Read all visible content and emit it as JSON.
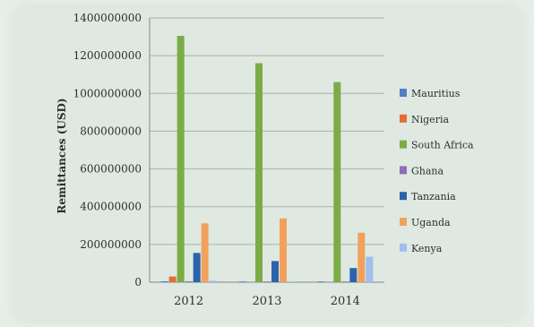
{
  "chart_data": {
    "type": "bar",
    "ylabel": "Remittances (USD)",
    "xlabel": "",
    "title": "",
    "categories": [
      "2012",
      "2013",
      "2014"
    ],
    "ylim": [
      0,
      1400000000
    ],
    "yticks": [
      0,
      200000000,
      400000000,
      600000000,
      800000000,
      1000000000,
      1200000000,
      1400000000
    ],
    "grid": true,
    "legend_position": "right",
    "series": [
      {
        "name": "Mauritius",
        "color": "#4f7fc4",
        "values": [
          5000000,
          1000000,
          2000000
        ]
      },
      {
        "name": "Nigeria",
        "color": "#e46d34",
        "values": [
          30000000,
          0,
          0
        ]
      },
      {
        "name": "South Africa",
        "color": "#7bac45",
        "values": [
          1305000000,
          1160000000,
          1060000000
        ]
      },
      {
        "name": "Ghana",
        "color": "#8c6fb8",
        "values": [
          5000000,
          2000000,
          2000000
        ]
      },
      {
        "name": "Tanzania",
        "color": "#2a63ab",
        "values": [
          155000000,
          112000000,
          75000000
        ]
      },
      {
        "name": "Uganda",
        "color": "#f2a15c",
        "values": [
          312000000,
          338000000,
          262000000
        ]
      },
      {
        "name": "Kenya",
        "color": "#9fbff0",
        "values": [
          8000000,
          1000000,
          135000000
        ]
      }
    ]
  }
}
